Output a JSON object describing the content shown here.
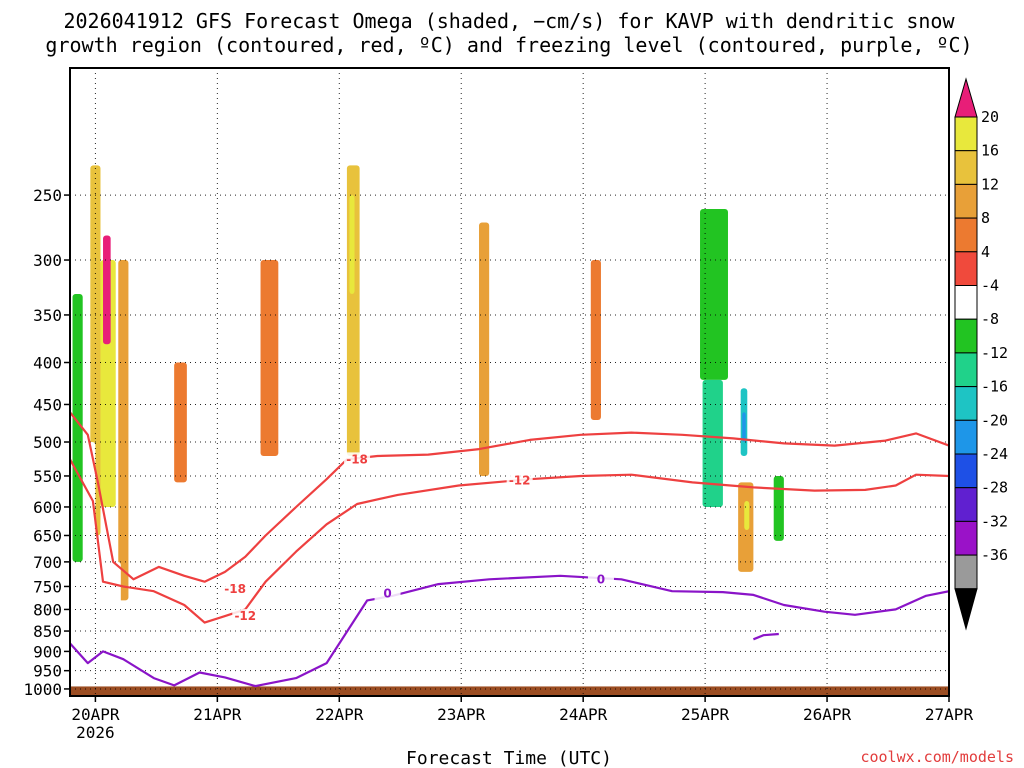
{
  "title": {
    "line1": "2026041912 GFS Forecast Omega (shaded, −cm/s) for KAVP with dendritic snow",
    "line2": "growth region (contoured, red, ºC) and freezing level (contoured, purple, ºC)"
  },
  "watermark": "coolwx.com/models",
  "chart_data": {
    "type": "heatmap",
    "xlabel": "Forecast Time (UTC)",
    "x_ticks": [
      {
        "t": 4.5,
        "label": "20APR",
        "sub": "2026"
      },
      {
        "t": 28.5,
        "label": "21APR"
      },
      {
        "t": 52.5,
        "label": "22APR"
      },
      {
        "t": 76.5,
        "label": "23APR"
      },
      {
        "t": 100.5,
        "label": "24APR"
      },
      {
        "t": 124.5,
        "label": "25APR"
      },
      {
        "t": 148.5,
        "label": "26APR"
      },
      {
        "t": 172.5,
        "label": "27APR"
      }
    ],
    "x_range": [
      -0.5,
      172.5
    ],
    "y_range_hpa": [
      1020,
      175
    ],
    "y_ticks": [
      250,
      300,
      350,
      400,
      450,
      500,
      550,
      600,
      650,
      700,
      750,
      800,
      850,
      900,
      950,
      1000
    ],
    "grid": true,
    "colorbar": {
      "levels": [
        -36,
        -32,
        -28,
        -24,
        -20,
        -16,
        -12,
        -8,
        -4,
        4,
        8,
        12,
        16,
        20
      ],
      "labels": [
        "20",
        "16",
        "12",
        "8",
        "4",
        "-4",
        "-8",
        "-12",
        "-16",
        "-20",
        "-24",
        "-28",
        "-32",
        "-36"
      ],
      "colors": [
        "#e8e83c",
        "#e8c23c",
        "#e8a038",
        "#ec7a30",
        "#f04a3c",
        "#ffffff",
        "#22c422",
        "#20d28a",
        "#1ec4c4",
        "#1e96e8",
        "#1e50e6",
        "#6020d0",
        "#9a12c8",
        "#9a9a9a"
      ],
      "top_color": "#e81e78",
      "bottom_color": "#000000"
    },
    "ground": {
      "color": "#9b4d22",
      "top_hpa": 993
    },
    "series": [
      {
        "name": "Omega",
        "kind": "shaded",
        "cells": [
          {
            "t0": 3.5,
            "t1": 5.5,
            "p0": 230,
            "p1": 650,
            "level": 12
          },
          {
            "t0": 5.5,
            "t1": 8.5,
            "p0": 300,
            "p1": 600,
            "level": 16
          },
          {
            "t0": 6,
            "t1": 7.5,
            "p0": 280,
            "p1": 380,
            "level": 20
          },
          {
            "t0": 9,
            "t1": 11,
            "p0": 300,
            "p1": 780,
            "level": 8
          },
          {
            "t0": 20,
            "t1": 22.5,
            "p0": 400,
            "p1": 560,
            "level": 4
          },
          {
            "t0": 37,
            "t1": 40.5,
            "p0": 300,
            "p1": 520,
            "level": 4
          },
          {
            "t0": 54,
            "t1": 56.5,
            "p0": 230,
            "p1": 520,
            "level": 12
          },
          {
            "t0": 54.5,
            "t1": 55.5,
            "p0": 250,
            "p1": 330,
            "level": 16
          },
          {
            "t0": 80,
            "t1": 82,
            "p0": 270,
            "p1": 550,
            "level": 8
          },
          {
            "t0": 102,
            "t1": 104,
            "p0": 300,
            "p1": 470,
            "level": 4
          },
          {
            "t0": 131,
            "t1": 134,
            "p0": 560,
            "p1": 720,
            "level": 8
          },
          {
            "t0": 132.2,
            "t1": 133.2,
            "p0": 590,
            "p1": 640,
            "level": 16
          },
          {
            "t0": 0,
            "t1": 2,
            "p0": 330,
            "p1": 700,
            "level": -12
          },
          {
            "t0": 3,
            "t1": 4.5,
            "p0": 500,
            "p1": 800,
            "level": -8
          },
          {
            "t0": 8,
            "t1": 9.5,
            "p0": 700,
            "p1": 900,
            "level": -8
          },
          {
            "t0": 57,
            "t1": 58.5,
            "p0": 560,
            "p1": 880,
            "level": -8
          },
          {
            "t0": 66,
            "t1": 68,
            "p0": 760,
            "p1": 880,
            "level": -8
          },
          {
            "t0": 74,
            "t1": 75.5,
            "p0": 280,
            "p1": 380,
            "level": -8
          },
          {
            "t0": 101,
            "t1": 103,
            "p0": 600,
            "p1": 720,
            "level": -8
          },
          {
            "t0": 123.5,
            "t1": 129,
            "p0": 260,
            "p1": 420,
            "level": -12
          },
          {
            "t0": 124,
            "t1": 128,
            "p0": 420,
            "p1": 600,
            "level": -16
          },
          {
            "t0": 131.5,
            "t1": 132.8,
            "p0": 430,
            "p1": 520,
            "level": -20
          },
          {
            "t0": 131.8,
            "t1": 132.5,
            "p0": 460,
            "p1": 500,
            "level": -24
          },
          {
            "t0": 138,
            "t1": 140,
            "p0": 550,
            "p1": 660,
            "level": -12
          },
          {
            "t0": 159,
            "t1": 160.5,
            "p0": 400,
            "p1": 450,
            "level": -8
          }
        ]
      },
      {
        "name": "Dendritic growth region",
        "kind": "contour",
        "color": "#ee4040",
        "contours": [
          {
            "label": "-18",
            "label_at": [
              32,
              755
            ],
            "label2_at": [
              56,
              525
            ],
            "points": [
              [
                -0.5,
                460
              ],
              [
                3,
                490
              ],
              [
                5,
                560
              ],
              [
                8,
                700
              ],
              [
                12,
                735
              ],
              [
                17,
                710
              ],
              [
                22,
                728
              ],
              [
                26,
                740
              ],
              [
                30,
                720
              ],
              [
                34,
                690
              ],
              [
                38,
                650
              ],
              [
                44,
                600
              ],
              [
                50,
                555
              ],
              [
                54,
                525
              ],
              [
                60,
                520
              ],
              [
                70,
                518
              ],
              [
                80,
                510
              ],
              [
                90,
                497
              ],
              [
                100,
                490
              ],
              [
                110,
                487
              ],
              [
                120,
                490
              ],
              [
                130,
                495
              ],
              [
                140,
                502
              ],
              [
                150,
                505
              ],
              [
                160,
                498
              ],
              [
                166,
                488
              ],
              [
                172.5,
                505
              ]
            ]
          },
          {
            "label": "-12",
            "label_at": [
              34,
              815
            ],
            "label2_at": [
              88,
              557
            ],
            "points": [
              [
                -0.5,
                525
              ],
              [
                4,
                590
              ],
              [
                6,
                740
              ],
              [
                10,
                750
              ],
              [
                16,
                760
              ],
              [
                22,
                790
              ],
              [
                26,
                830
              ],
              [
                30,
                815
              ],
              [
                34,
                800
              ],
              [
                38,
                740
              ],
              [
                44,
                680
              ],
              [
                50,
                630
              ],
              [
                56,
                595
              ],
              [
                64,
                580
              ],
              [
                76,
                565
              ],
              [
                90,
                555
              ],
              [
                100,
                550
              ],
              [
                110,
                548
              ],
              [
                122,
                560
              ],
              [
                134,
                568
              ],
              [
                146,
                573
              ],
              [
                156,
                572
              ],
              [
                162,
                565
              ],
              [
                166,
                548
              ],
              [
                172.5,
                550
              ]
            ]
          }
        ]
      },
      {
        "name": "Freezing level",
        "kind": "contour",
        "color": "#8a14c8",
        "contours": [
          {
            "label": "0",
            "label_at": [
              62,
              765
            ],
            "label2_at": [
              104,
              735
            ],
            "points": [
              [
                -0.5,
                880
              ],
              [
                3,
                930
              ],
              [
                6,
                900
              ],
              [
                10,
                920
              ],
              [
                16,
                970
              ],
              [
                20,
                990
              ],
              [
                25,
                955
              ],
              [
                30,
                968
              ],
              [
                36,
                992
              ],
              [
                44,
                970
              ],
              [
                50,
                930
              ],
              [
                58,
                780
              ],
              [
                63,
                770
              ],
              [
                72,
                745
              ],
              [
                82,
                735
              ],
              [
                96,
                728
              ],
              [
                108,
                735
              ],
              [
                118,
                760
              ],
              [
                128,
                762
              ],
              [
                134,
                768
              ],
              [
                140,
                790
              ],
              [
                148,
                805
              ],
              [
                154,
                812
              ],
              [
                162,
                800
              ],
              [
                168,
                770
              ],
              [
                172.5,
                760
              ]
            ]
          },
          {
            "label": "0",
            "points": [
              [
                134,
                870
              ],
              [
                136,
                860
              ],
              [
                139,
                857
              ]
            ]
          }
        ]
      }
    ]
  }
}
